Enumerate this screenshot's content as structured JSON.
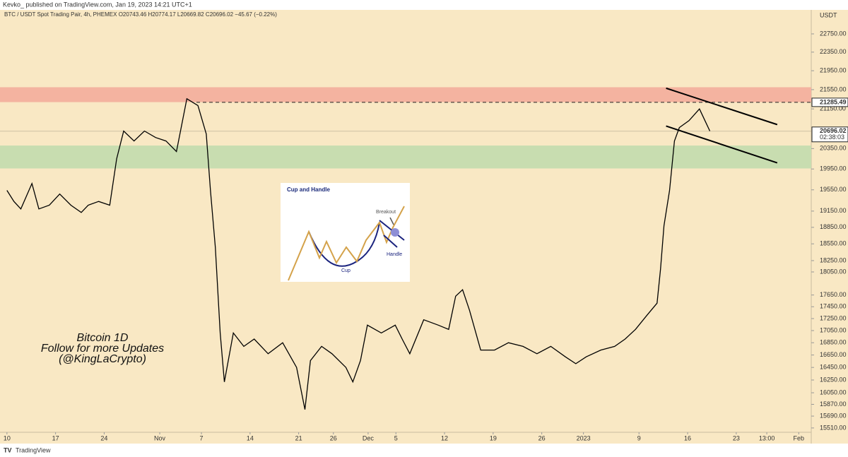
{
  "header": {
    "publisher": "Kevko_ published on TradingView.com, Jan 19, 2023 14:21 UTC+1"
  },
  "footer": {
    "brand": "TradingView"
  },
  "inset": {
    "title": "Cup and Handle",
    "breakout": "Breakout",
    "cup": "Cup",
    "handle": "Handle"
  },
  "chart_data": {
    "type": "line",
    "title": "BTC / USDT Spot Trading Pair, 4h, PHEMEX  O20743.46  H20774.17  L20669.82  C20696.02  −45.67 (−0.22%)",
    "y_label": "USDT",
    "log_scale": true,
    "grid": false,
    "color": "#000000",
    "x": [
      0,
      1.0,
      2.0,
      3.6,
      4.6,
      6.1,
      7.6,
      9.2,
      10.7,
      11.7,
      13.2,
      14.8,
      15.8,
      16.8,
      18.3,
      19.8,
      21.4,
      22.9,
      24.4,
      25.9,
      27.5,
      28.7,
      29.3,
      30.0,
      30.7,
      31.3,
      32.6,
      34.1,
      35.6,
      37.6,
      39.7,
      41.7,
      42.9,
      43.7,
      45.3,
      46.8,
      48.8,
      49.8,
      50.9,
      51.9,
      53.9,
      55.9,
      56.9,
      58.0,
      60.0,
      62.1,
      63.6,
      64.6,
      65.6,
      66.6,
      68.2,
      70.2,
      72.2,
      74.3,
      76.3,
      78.3,
      80.4,
      81.9,
      83.4,
      85.5,
      87.5,
      89.0,
      90.5,
      92.1,
      93.6,
      94.1,
      94.6,
      95.4,
      96.1,
      96.8,
      98.2,
      99.7,
      100.5,
      101.2
    ],
    "values": [
      19540,
      19330,
      19190,
      19670,
      19190,
      19260,
      19470,
      19260,
      19125,
      19260,
      19330,
      19260,
      20150,
      20700,
      20500,
      20700,
      20570,
      20500,
      20290,
      21360,
      21220,
      20640,
      19540,
      18490,
      17010,
      16220,
      17010,
      16790,
      16910,
      16670,
      16850,
      16450,
      15790,
      16560,
      16790,
      16670,
      16450,
      16220,
      16560,
      17140,
      17010,
      17140,
      16910,
      16670,
      17230,
      17140,
      17070,
      17630,
      17740,
      17390,
      16730,
      16730,
      16850,
      16790,
      16670,
      16790,
      16620,
      16510,
      16620,
      16730,
      16790,
      16910,
      17070,
      17300,
      17510,
      18100,
      18880,
      19540,
      20500,
      20770,
      20910,
      21150,
      20910,
      20700
    ],
    "xlim": [
      -1.0,
      115.8
    ],
    "ylim": [
      15445,
      23287
    ],
    "xticks": [
      {
        "value": 0,
        "label": "10"
      },
      {
        "value": 7,
        "label": "17"
      },
      {
        "value": 14,
        "label": "24"
      },
      {
        "value": 22,
        "label": "Nov"
      },
      {
        "value": 28,
        "label": "7"
      },
      {
        "value": 35,
        "label": "14"
      },
      {
        "value": 42,
        "label": "21"
      },
      {
        "value": 47,
        "label": "26"
      },
      {
        "value": 52,
        "label": "Dec"
      },
      {
        "value": 56,
        "label": "5"
      },
      {
        "value": 63,
        "label": "12"
      },
      {
        "value": 70,
        "label": "19"
      },
      {
        "value": 77,
        "label": "26"
      },
      {
        "value": 83,
        "label": "2023"
      },
      {
        "value": 91,
        "label": "9"
      },
      {
        "value": 98,
        "label": "16"
      },
      {
        "value": 105,
        "label": "23"
      },
      {
        "value": 109.4,
        "label": "13:00"
      },
      {
        "value": 114,
        "label": "Feb"
      }
    ],
    "yticks": [
      {
        "value": 22750,
        "label": "22750.00"
      },
      {
        "value": 22350,
        "label": "22350.00"
      },
      {
        "value": 21950,
        "label": "21950.00"
      },
      {
        "value": 21550,
        "label": "21550.00"
      },
      {
        "value": 21150,
        "label": "21150.00"
      },
      {
        "value": 20350,
        "label": "20350.00"
      },
      {
        "value": 19950,
        "label": "19950.00"
      },
      {
        "value": 19550,
        "label": "19550.00"
      },
      {
        "value": 19150,
        "label": "19150.00"
      },
      {
        "value": 18850,
        "label": "18850.00"
      },
      {
        "value": 18550,
        "label": "18550.00"
      },
      {
        "value": 18250,
        "label": "18250.00"
      },
      {
        "value": 18050,
        "label": "18050.00"
      },
      {
        "value": 17650,
        "label": "17650.00"
      },
      {
        "value": 17450,
        "label": "17450.00"
      },
      {
        "value": 17250,
        "label": "17250.00"
      },
      {
        "value": 17050,
        "label": "17050.00"
      },
      {
        "value": 16850,
        "label": "16850.00"
      },
      {
        "value": 16650,
        "label": "16650.00"
      },
      {
        "value": 16450,
        "label": "16450.00"
      },
      {
        "value": 16250,
        "label": "16250.00"
      },
      {
        "value": 16050,
        "label": "16050.00"
      },
      {
        "value": 15870,
        "label": "15870.00"
      },
      {
        "value": 15690,
        "label": "15690.00"
      },
      {
        "value": 15510,
        "label": "15510.00"
      }
    ],
    "zones": [
      {
        "from": 21290,
        "to": 21600,
        "color": "#f4b3a0"
      },
      {
        "from": 19960,
        "to": 20410,
        "color": "#c8ddb0"
      }
    ],
    "trendlines": [
      {
        "x": [
          94.9,
          110.9
        ],
        "values": [
          21580,
          20830
        ]
      },
      {
        "x": [
          94.9,
          110.9
        ],
        "values": [
          20800,
          20070
        ]
      }
    ],
    "level_line": 21285.49,
    "last_price": 20696.02,
    "countdown": "02:38:03",
    "annotations": [
      "Bitcoin 1D",
      "Follow for more Updates",
      "(@KingLaCrypto)"
    ]
  }
}
